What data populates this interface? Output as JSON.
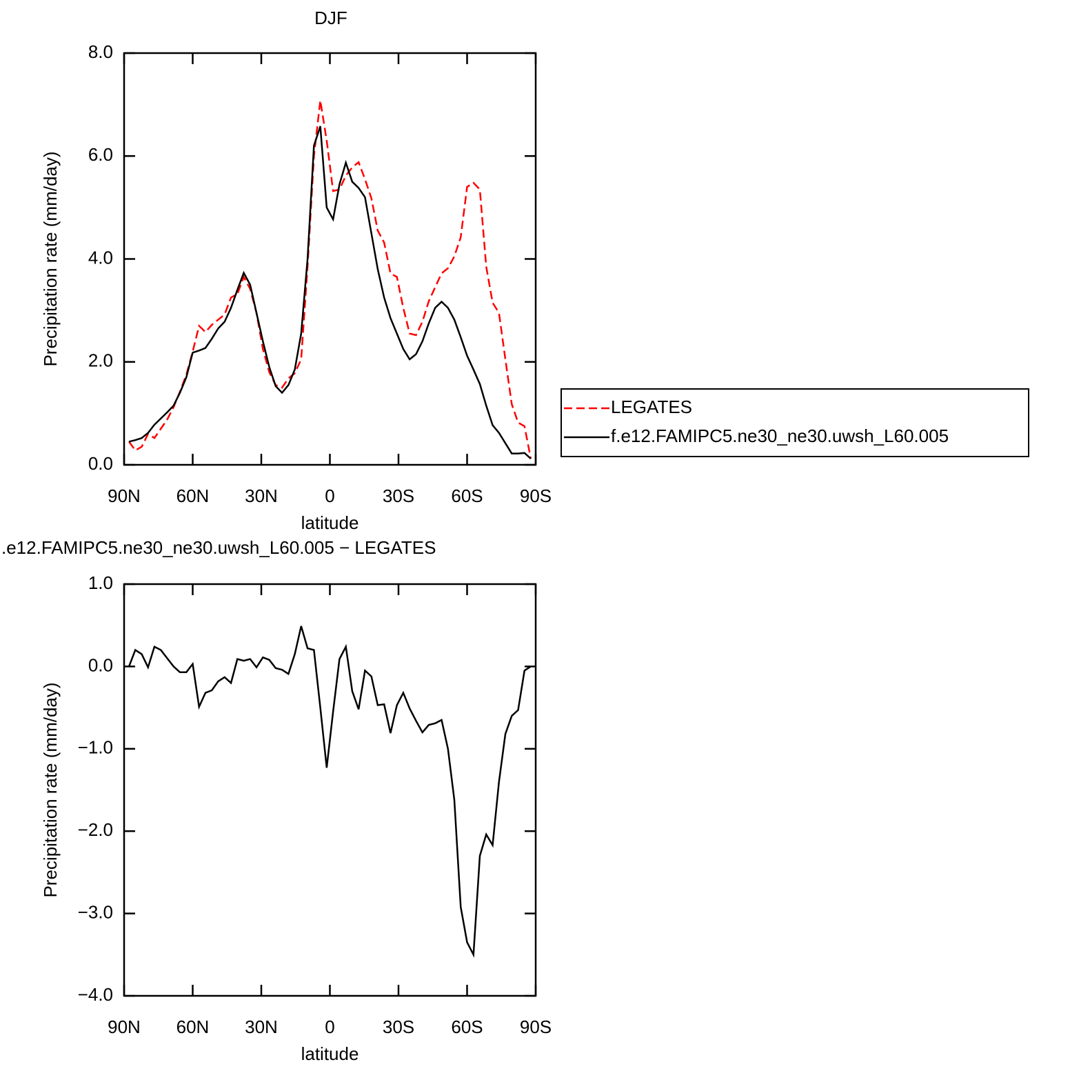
{
  "chart_data": [
    {
      "type": "line",
      "title": "DJF",
      "ylabel": "Precipitation rate (mm/day)",
      "xlabel": "latitude",
      "xlim": [
        90,
        -90
      ],
      "xticks": [
        {
          "value": 90,
          "label": "90N"
        },
        {
          "value": 60,
          "label": "60N"
        },
        {
          "value": 30,
          "label": "30N"
        },
        0,
        {
          "value": -30,
          "label": "30S"
        },
        {
          "value": -60,
          "label": "60S"
        },
        {
          "value": -90,
          "label": "90S"
        }
      ],
      "ylim": [
        0,
        8
      ],
      "yticks": [
        {
          "value": 0,
          "label": "0.0"
        },
        {
          "value": 2,
          "label": "2.0"
        },
        {
          "value": 4,
          "label": "4.0"
        },
        {
          "value": 6,
          "label": "6.0"
        },
        {
          "value": 8,
          "label": "8.0"
        }
      ],
      "legend": "right",
      "x": [
        87.86,
        85.1,
        82.31,
        79.53,
        76.74,
        73.95,
        71.16,
        68.37,
        65.58,
        62.79,
        60.0,
        57.21,
        54.42,
        51.63,
        48.84,
        46.04,
        43.25,
        40.46,
        37.67,
        34.88,
        32.09,
        29.3,
        26.51,
        23.72,
        20.93,
        18.14,
        15.35,
        12.56,
        9.77,
        6.98,
        4.19,
        1.4,
        -1.4,
        -4.19,
        -6.98,
        -9.77,
        -12.56,
        -15.35,
        -18.14,
        -20.93,
        -23.72,
        -26.51,
        -29.3,
        -32.09,
        -34.88,
        -37.67,
        -40.46,
        -43.25,
        -46.04,
        -48.84,
        -51.63,
        -54.42,
        -57.21,
        -60.0,
        -62.79,
        -65.58,
        -68.37,
        -71.16,
        -73.95,
        -76.74,
        -79.53,
        -82.31,
        -85.1,
        -87.86
      ],
      "series": [
        {
          "name": "LEGATES",
          "color": "#ff0000",
          "dashed": true,
          "values": [
            0.45,
            0.28,
            0.35,
            0.6,
            0.52,
            0.7,
            0.88,
            1.12,
            1.42,
            1.75,
            2.2,
            2.7,
            2.58,
            2.72,
            2.82,
            2.92,
            3.25,
            3.32,
            3.65,
            3.42,
            2.95,
            2.25,
            1.8,
            1.55,
            1.5,
            1.68,
            1.78,
            2.05,
            3.85,
            6.0,
            7.08,
            6.3,
            5.32,
            5.35,
            5.62,
            5.78,
            5.88,
            5.55,
            5.18,
            4.55,
            4.32,
            3.72,
            3.65,
            3.05,
            2.55,
            2.52,
            2.78,
            3.18,
            3.45,
            3.72,
            3.82,
            4.05,
            4.42,
            5.4,
            5.48,
            5.35,
            3.85,
            3.15,
            2.95,
            2.05,
            1.18,
            0.82,
            0.75,
            0.12
          ]
        },
        {
          "name": "f.e12.FAMIPC5.ne30_ne30.uwsh_L60.005",
          "color": "#000000",
          "dashed": false,
          "values": [
            0.45,
            0.48,
            0.52,
            0.62,
            0.78,
            0.9,
            1.02,
            1.15,
            1.4,
            1.7,
            2.18,
            2.22,
            2.27,
            2.45,
            2.65,
            2.78,
            3.05,
            3.4,
            3.73,
            3.5,
            2.95,
            2.4,
            1.9,
            1.53,
            1.4,
            1.55,
            1.85,
            2.55,
            4.0,
            6.2,
            6.58,
            5.0,
            4.77,
            5.45,
            5.87,
            5.5,
            5.38,
            5.2,
            4.5,
            3.8,
            3.25,
            2.85,
            2.55,
            2.25,
            2.05,
            2.15,
            2.4,
            2.75,
            3.05,
            3.17,
            3.05,
            2.82,
            2.48,
            2.12,
            1.85,
            1.57,
            1.15,
            0.77,
            0.62,
            0.42,
            0.22,
            0.22,
            0.23,
            0.12
          ]
        }
      ]
    },
    {
      "type": "line",
      "title": ".e12.FAMIPC5.ne30_ne30.uwsh_L60.005 − LEGATES",
      "ylabel": "Precipitation rate (mm/day)",
      "xlabel": "latitude",
      "xlim": [
        90,
        -90
      ],
      "xticks": [
        {
          "value": 90,
          "label": "90N"
        },
        {
          "value": 60,
          "label": "60N"
        },
        {
          "value": 30,
          "label": "30N"
        },
        0,
        {
          "value": -30,
          "label": "30S"
        },
        {
          "value": -60,
          "label": "60S"
        },
        {
          "value": -90,
          "label": "90S"
        }
      ],
      "ylim": [
        -4,
        1
      ],
      "yticks": [
        {
          "value": -4,
          "label": "−4.0"
        },
        {
          "value": -3,
          "label": "−3.0"
        },
        {
          "value": -2,
          "label": "−2.0"
        },
        {
          "value": -1,
          "label": "−1.0"
        },
        {
          "value": 0,
          "label": "0.0"
        },
        {
          "value": 1,
          "label": "1.0"
        }
      ],
      "x": [
        87.86,
        85.1,
        82.31,
        79.53,
        76.74,
        73.95,
        71.16,
        68.37,
        65.58,
        62.79,
        60.0,
        57.21,
        54.42,
        51.63,
        48.84,
        46.04,
        43.25,
        40.46,
        37.67,
        34.88,
        32.09,
        29.3,
        26.51,
        23.72,
        20.93,
        18.14,
        15.35,
        12.56,
        9.77,
        6.98,
        4.19,
        1.4,
        -1.4,
        -4.19,
        -6.98,
        -9.77,
        -12.56,
        -15.35,
        -18.14,
        -20.93,
        -23.72,
        -26.51,
        -29.3,
        -32.09,
        -34.88,
        -37.67,
        -40.46,
        -43.25,
        -46.04,
        -48.84,
        -51.63,
        -54.42,
        -57.21,
        -60.0,
        -62.79,
        -65.58,
        -68.37,
        -71.16,
        -73.95,
        -76.74,
        -79.53,
        -82.31,
        -85.1,
        -87.86
      ],
      "series": [
        {
          "color": "#000000",
          "dashed": false,
          "values": [
            0.0,
            0.2,
            0.15,
            -0.01,
            0.24,
            0.2,
            0.1,
            0.0,
            -0.07,
            -0.07,
            0.03,
            -0.49,
            -0.32,
            -0.29,
            -0.18,
            -0.13,
            -0.2,
            0.09,
            0.07,
            0.09,
            -0.01,
            0.11,
            0.08,
            -0.02,
            -0.04,
            -0.09,
            0.15,
            0.49,
            0.22,
            0.2,
            -0.5,
            -1.23,
            -0.55,
            0.09,
            0.24,
            -0.3,
            -0.52,
            -0.05,
            -0.12,
            -0.47,
            -0.46,
            -0.81,
            -0.47,
            -0.32,
            -0.51,
            -0.66,
            -0.8,
            -0.71,
            -0.69,
            -0.65,
            -1.0,
            -1.62,
            -2.92,
            -3.35,
            -3.5,
            -2.3,
            -2.04,
            -2.17,
            -1.4,
            -0.82,
            -0.6,
            -0.53,
            -0.05,
            0.0
          ]
        }
      ]
    }
  ]
}
